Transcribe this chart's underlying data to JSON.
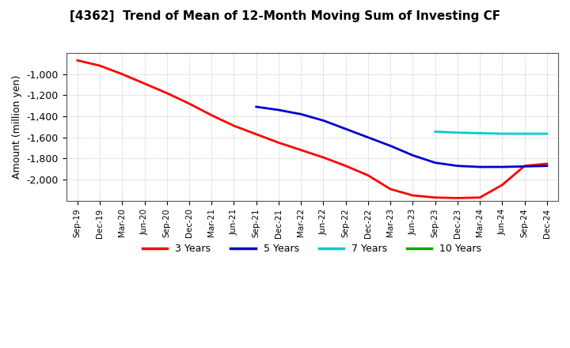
{
  "title": "[4362]  Trend of Mean of 12-Month Moving Sum of Investing CF",
  "ylabel": "Amount (million yen)",
  "ylim": [
    -2200,
    -800
  ],
  "yticks": [
    -2000,
    -1800,
    -1600,
    -1400,
    -1200,
    -1000
  ],
  "background_color": "#ffffff",
  "grid_color": "#aaaaaa",
  "x_labels": [
    "Sep-19",
    "Dec-19",
    "Mar-20",
    "Jun-20",
    "Sep-20",
    "Dec-20",
    "Mar-21",
    "Jun-21",
    "Sep-21",
    "Dec-21",
    "Mar-22",
    "Jun-22",
    "Sep-22",
    "Dec-22",
    "Mar-23",
    "Jun-23",
    "Sep-23",
    "Dec-23",
    "Mar-24",
    "Jun-24",
    "Sep-24",
    "Dec-24"
  ],
  "series": {
    "3 Years": {
      "color": "#ff0000",
      "data_x": [
        0,
        1,
        2,
        3,
        4,
        5,
        6,
        7,
        8,
        9,
        10,
        11,
        12,
        13,
        14,
        15,
        16,
        17,
        18,
        19,
        20,
        21
      ],
      "data_y": [
        -870,
        -920,
        -1000,
        -1090,
        -1180,
        -1280,
        -1390,
        -1490,
        -1570,
        -1650,
        -1720,
        -1790,
        -1870,
        -1960,
        -2090,
        -2150,
        -2170,
        -2175,
        -2170,
        -2050,
        -1870,
        -1850
      ]
    },
    "5 Years": {
      "color": "#0000cc",
      "data_x": [
        8,
        9,
        10,
        11,
        12,
        13,
        14,
        15,
        16,
        17,
        18,
        19,
        20,
        21
      ],
      "data_y": [
        -1310,
        -1340,
        -1380,
        -1440,
        -1520,
        -1600,
        -1680,
        -1770,
        -1840,
        -1870,
        -1880,
        -1880,
        -1875,
        -1870
      ]
    },
    "7 Years": {
      "color": "#00cccc",
      "data_x": [
        16,
        17,
        18,
        19,
        20,
        21
      ],
      "data_y": [
        -1545,
        -1555,
        -1560,
        -1565,
        -1565,
        -1565
      ]
    },
    "10 Years": {
      "color": "#00aa00",
      "data_x": [],
      "data_y": []
    }
  },
  "legend_labels": [
    "3 Years",
    "5 Years",
    "7 Years",
    "10 Years"
  ],
  "legend_colors": [
    "#ff0000",
    "#0000cc",
    "#00cccc",
    "#00aa00"
  ]
}
